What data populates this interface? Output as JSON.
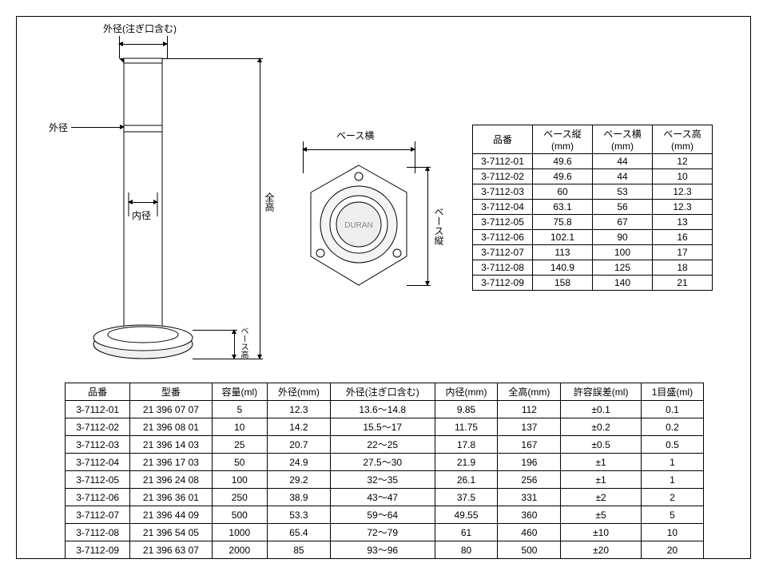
{
  "diagram": {
    "labels": {
      "outer_dia_with_spout": "外径(注ぎ口含む)",
      "outer_dia": "外径",
      "inner_dia": "内径",
      "full_height": "全高",
      "base_width": "ベース横",
      "base_depth": "ベース縦",
      "base_height": "ベース高",
      "brand": "DURAN"
    },
    "colors": {
      "line": "#000000",
      "shade": "#e8e8e8",
      "background": "#ffffff"
    }
  },
  "table1": {
    "columns": [
      "品番",
      "ベース縦(mm)",
      "ベース横(mm)",
      "ベース高(mm)"
    ],
    "rows": [
      [
        "3-7112-01",
        "49.6",
        "44",
        "12"
      ],
      [
        "3-7112-02",
        "49.6",
        "44",
        "10"
      ],
      [
        "3-7112-03",
        "60",
        "53",
        "12.3"
      ],
      [
        "3-7112-04",
        "63.1",
        "56",
        "12.3"
      ],
      [
        "3-7112-05",
        "75.8",
        "67",
        "13"
      ],
      [
        "3-7112-06",
        "102.1",
        "90",
        "16"
      ],
      [
        "3-7112-07",
        "113",
        "100",
        "17"
      ],
      [
        "3-7112-08",
        "140.9",
        "125",
        "18"
      ],
      [
        "3-7112-09",
        "158",
        "140",
        "21"
      ]
    ]
  },
  "table2": {
    "columns": [
      "品番",
      "型番",
      "容量(ml)",
      "外径(mm)",
      "外径(注ぎ口含む)",
      "内径(mm)",
      "全高(mm)",
      "許容誤差(ml)",
      "1目盛(ml)"
    ],
    "rows": [
      [
        "3-7112-01",
        "21 396 07 07",
        "5",
        "12.3",
        "13.6～14.8",
        "9.85",
        "112",
        "±0.1",
        "0.1"
      ],
      [
        "3-7112-02",
        "21 396 08 01",
        "10",
        "14.2",
        "15.5～17",
        "11.75",
        "137",
        "±0.2",
        "0.2"
      ],
      [
        "3-7112-03",
        "21 396 14 03",
        "25",
        "20.7",
        "22～25",
        "17.8",
        "167",
        "±0.5",
        "0.5"
      ],
      [
        "3-7112-04",
        "21 396 17 03",
        "50",
        "24.9",
        "27.5～30",
        "21.9",
        "196",
        "±1",
        "1"
      ],
      [
        "3-7112-05",
        "21 396 24 08",
        "100",
        "29.2",
        "32～35",
        "26.1",
        "256",
        "±1",
        "1"
      ],
      [
        "3-7112-06",
        "21 396 36 01",
        "250",
        "38.9",
        "43～47",
        "37.5",
        "331",
        "±2",
        "2"
      ],
      [
        "3-7112-07",
        "21 396 44 09",
        "500",
        "53.3",
        "59～64",
        "49.55",
        "360",
        "±5",
        "5"
      ],
      [
        "3-7112-08",
        "21 396 54 05",
        "1000",
        "65.4",
        "72～79",
        "61",
        "460",
        "±10",
        "10"
      ],
      [
        "3-7112-09",
        "21 396 63 07",
        "2000",
        "85",
        "93～96",
        "80",
        "500",
        "±20",
        "20"
      ]
    ]
  }
}
